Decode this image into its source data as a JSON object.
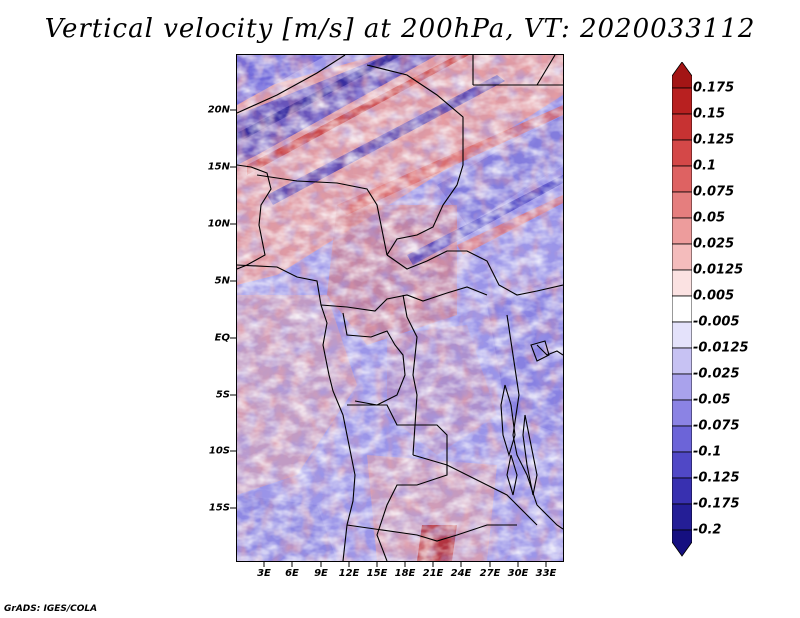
{
  "title": "Vertical velocity [m/s] at 200hPa, VT: 2020033112",
  "credit": "GrADS: IGES/COLA",
  "latitude_labels": [
    "20N",
    "15N",
    "10N",
    "5N",
    "EQ",
    "5S",
    "10S",
    "15S"
  ],
  "longitude_labels": [
    "3E",
    "6E",
    "9E",
    "12E",
    "15E",
    "18E",
    "21E",
    "24E",
    "27E",
    "30E",
    "33E"
  ],
  "colorbar": {
    "labels": [
      "0.175",
      "0.15",
      "0.125",
      "0.1",
      "0.075",
      "0.05",
      "0.025",
      "0.0125",
      "0.005",
      "-0.005",
      "-0.0125",
      "-0.025",
      "-0.05",
      "-0.075",
      "-0.1",
      "-0.125",
      "-0.175",
      "-0.2"
    ],
    "colors": [
      "#a31515",
      "#b82020",
      "#c73232",
      "#d44848",
      "#de6262",
      "#e57e7e",
      "#ed9c9c",
      "#f4bcbc",
      "#fbe2e2",
      "#ffffff",
      "#e4e2fb",
      "#c7c2f3",
      "#a9a2ec",
      "#8b83e4",
      "#6c64d8",
      "#5048c6",
      "#3830b0",
      "#241e96",
      "#150f80"
    ]
  },
  "palette": {
    "border": "#000000",
    "background": "#ffffff"
  }
}
